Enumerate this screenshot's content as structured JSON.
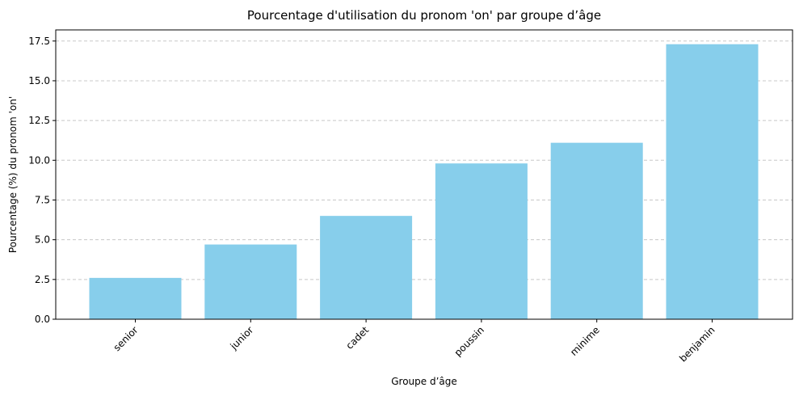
{
  "chart_data": {
    "type": "bar",
    "title": "Pourcentage d'utilisation du pronom 'on' par groupe d’âge",
    "xlabel": "Groupe d’âge",
    "ylabel": "Pourcentage (%) du pronom 'on'",
    "categories": [
      "senior",
      "junior",
      "cadet",
      "poussin",
      "minime",
      "benjamin"
    ],
    "values": [
      2.6,
      4.7,
      6.5,
      9.8,
      11.1,
      17.3
    ],
    "ylim": [
      0,
      18.2
    ],
    "yticks": [
      0.0,
      2.5,
      5.0,
      7.5,
      10.0,
      12.5,
      15.0,
      17.5
    ],
    "ytick_labels": [
      "0.0",
      "2.5",
      "5.0",
      "7.5",
      "10.0",
      "12.5",
      "15.0",
      "17.5"
    ],
    "grid": "y-dashed",
    "bar_color": "#87ceeb",
    "grid_color": "#c8c8c8"
  }
}
